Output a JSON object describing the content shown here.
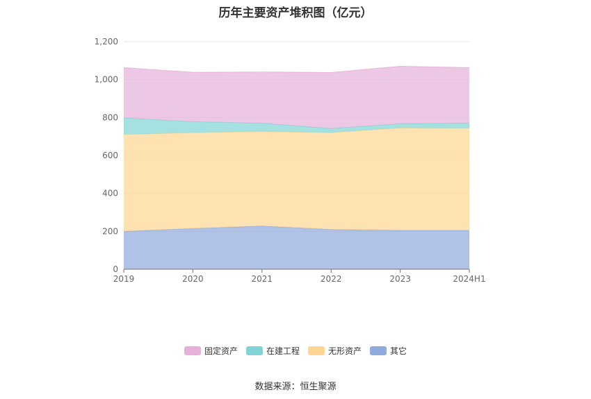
{
  "chart_data": {
    "type": "area",
    "stacked": true,
    "title": "历年主要资产堆积图（亿元）",
    "x": [
      "2019",
      "2020",
      "2021",
      "2022",
      "2023",
      "2024H1"
    ],
    "ylim": [
      0,
      1200
    ],
    "yticks": [
      "0",
      "200",
      "400",
      "600",
      "800",
      "1,000",
      "1,200"
    ],
    "grid": true,
    "legend_position": "bottom",
    "series": [
      {
        "name": "其它",
        "values": [
          200,
          215,
          228,
          210,
          205,
          205
        ],
        "color": "#8faadc"
      },
      {
        "name": "无形资产",
        "values": [
          510,
          505,
          498,
          510,
          540,
          538
        ],
        "color": "#ffd591"
      },
      {
        "name": "在建工程",
        "values": [
          88,
          58,
          44,
          22,
          22,
          28
        ],
        "color": "#80d4d6"
      },
      {
        "name": "固定资产",
        "values": [
          265,
          260,
          270,
          295,
          303,
          292
        ],
        "color": "#e6b0d8"
      }
    ]
  },
  "legend_order": [
    3,
    2,
    1,
    0
  ],
  "source": "数据来源：恒生聚源"
}
